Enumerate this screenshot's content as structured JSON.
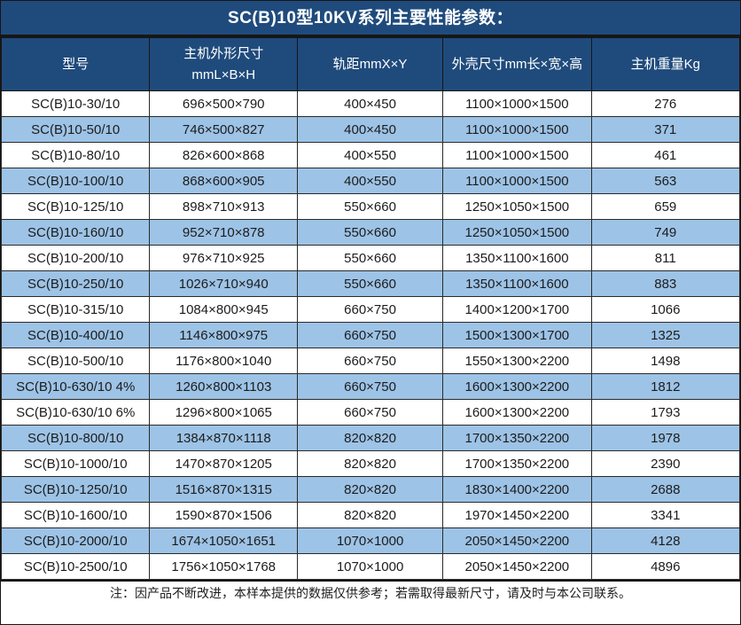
{
  "title": "SC(B)10型10KV系列主要性能参数：",
  "table": {
    "header": {
      "model": "型号",
      "main_dims_line1": "主机外形尺寸",
      "main_dims_line2": "mmL×B×H",
      "rail_gauge": "轨距mmX×Y",
      "shell_size": "外壳尺寸mm长×宽×高",
      "weight": "主机重量Kg"
    },
    "rows": [
      [
        "SC(B)10-30/10",
        "696×500×790",
        "400×450",
        "1100×1000×1500",
        "276"
      ],
      [
        "SC(B)10-50/10",
        "746×500×827",
        "400×450",
        "1100×1000×1500",
        "371"
      ],
      [
        "SC(B)10-80/10",
        "826×600×868",
        "400×550",
        "1100×1000×1500",
        "461"
      ],
      [
        "SC(B)10-100/10",
        "868×600×905",
        "400×550",
        "1100×1000×1500",
        "563"
      ],
      [
        "SC(B)10-125/10",
        "898×710×913",
        "550×660",
        "1250×1050×1500",
        "659"
      ],
      [
        "SC(B)10-160/10",
        "952×710×878",
        "550×660",
        "1250×1050×1500",
        "749"
      ],
      [
        "SC(B)10-200/10",
        "976×710×925",
        "550×660",
        "1350×1100×1600",
        "811"
      ],
      [
        "SC(B)10-250/10",
        "1026×710×940",
        "550×660",
        "1350×1100×1600",
        "883"
      ],
      [
        "SC(B)10-315/10",
        "1084×800×945",
        "660×750",
        "1400×1200×1700",
        "1066"
      ],
      [
        "SC(B)10-400/10",
        "1146×800×975",
        "660×750",
        "1500×1300×1700",
        "1325"
      ],
      [
        "SC(B)10-500/10",
        "1176×800×1040",
        "660×750",
        "1550×1300×2200",
        "1498"
      ],
      [
        "SC(B)10-630/10 4%",
        "1260×800×1103",
        "660×750",
        "1600×1300×2200",
        "1812"
      ],
      [
        "SC(B)10-630/10 6%",
        "1296×800×1065",
        "660×750",
        "1600×1300×2200",
        "1793"
      ],
      [
        "SC(B)10-800/10",
        "1384×870×1118",
        "820×820",
        "1700×1350×2200",
        "1978"
      ],
      [
        "SC(B)10-1000/10",
        "1470×870×1205",
        "820×820",
        "1700×1350×2200",
        "2390"
      ],
      [
        "SC(B)10-1250/10",
        "1516×870×1315",
        "820×820",
        "1830×1400×2200",
        "2688"
      ],
      [
        "SC(B)10-1600/10",
        "1590×870×1506",
        "820×820",
        "1970×1450×2200",
        "3341"
      ],
      [
        "SC(B)10-2000/10",
        "1674×1050×1651",
        "1070×1000",
        "2050×1450×2200",
        "4128"
      ],
      [
        "SC(B)10-2500/10",
        "1756×1050×1768",
        "1070×1000",
        "2050×1450×2200",
        "4896"
      ]
    ]
  },
  "footer": {
    "note": "注：因产品不断改进，本样本提供的数据仅供参考；若需取得最新尺寸，请及时与本公司联系。"
  },
  "colors": {
    "header_bg": "#1F4B7C",
    "stripe_bg": "#9DC3E6",
    "row_bg": "#FFFFFF",
    "border": "#161616",
    "header_text": "#FFFFFF",
    "body_text": "#1C1C1C"
  }
}
